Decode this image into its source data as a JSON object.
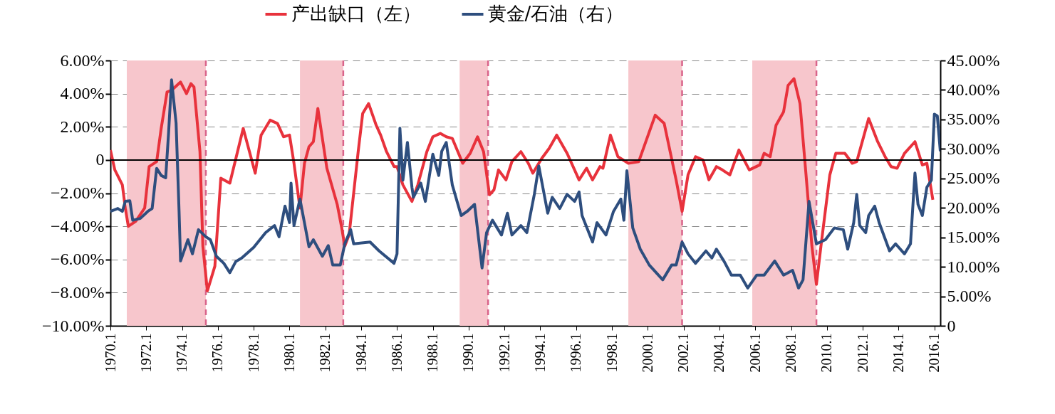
{
  "chart_data": {
    "type": "line",
    "legend": "top",
    "grid": "y",
    "line_style": "solid",
    "xlim": [
      "1970-01",
      "2016-05"
    ],
    "xticks": [
      {
        "value": "1970-01",
        "label": "1970.1"
      },
      {
        "value": "1972-01",
        "label": "1972.1"
      },
      {
        "value": "1974-01",
        "label": "1974.1"
      },
      {
        "value": "1976-01",
        "label": "1976.1"
      },
      {
        "value": "1978-01",
        "label": "1978.1"
      },
      {
        "value": "1980-01",
        "label": "1980.1"
      },
      {
        "value": "1982-01",
        "label": "1982.1"
      },
      {
        "value": "1984-01",
        "label": "1984.1"
      },
      {
        "value": "1986-01",
        "label": "1986.1"
      },
      {
        "value": "1988-01",
        "label": "1988.1"
      },
      {
        "value": "1990-01",
        "label": "1990.1"
      },
      {
        "value": "1992-01",
        "label": "1992.1"
      },
      {
        "value": "1994-01",
        "label": "1994.1"
      },
      {
        "value": "1996-01",
        "label": "1996.1"
      },
      {
        "value": "1998-01",
        "label": "1998.1"
      },
      {
        "value": "2000-01",
        "label": "2000.1"
      },
      {
        "value": "2002-01",
        "label": "2002.1"
      },
      {
        "value": "2004-01",
        "label": "2004.1"
      },
      {
        "value": "2006-01",
        "label": "2006.1"
      },
      {
        "value": "2008-01",
        "label": "2008.1"
      },
      {
        "value": "2010-01",
        "label": "2010.1"
      },
      {
        "value": "2012-01",
        "label": "2012.1"
      },
      {
        "value": "2014-01",
        "label": "2014.1"
      },
      {
        "value": "2016-01",
        "label": "2016.1"
      }
    ],
    "ylim": [
      -10,
      6
    ],
    "yticks": [
      {
        "value": 6,
        "label": "6.00%"
      },
      {
        "value": 4,
        "label": "4.00%"
      },
      {
        "value": 2,
        "label": "2.00%"
      },
      0,
      {
        "value": -2,
        "label": "−2.00%"
      },
      {
        "value": -4,
        "label": "−4.00%"
      },
      {
        "value": -6,
        "label": "−6.00%"
      },
      {
        "value": -8,
        "label": "−8.00%"
      },
      {
        "value": -10,
        "label": "−10.00%"
      }
    ],
    "y2lim": [
      0,
      45
    ],
    "y2ticks": [
      {
        "value": 45,
        "label": "45.00%"
      },
      {
        "value": 40,
        "label": "40.00%"
      },
      {
        "value": 35,
        "label": "35.00%"
      },
      {
        "value": 30,
        "label": "30.00%"
      },
      {
        "value": 25,
        "label": "25.00%"
      },
      {
        "value": 20,
        "label": "20.00%"
      },
      {
        "value": 15,
        "label": "15.00%"
      },
      {
        "value": 10,
        "label": "10.00%"
      },
      {
        "value": 5,
        "label": "5.00%"
      },
      0
    ],
    "bands": [
      {
        "axis": "x",
        "from": "1970-12",
        "to": "1975-05",
        "color": "#f7c6cc"
      },
      {
        "axis": "x",
        "from": "1980-08",
        "to": "1983-01",
        "color": "#f7c6cc"
      },
      {
        "axis": "x",
        "from": "1989-07",
        "to": "1991-02",
        "color": "#f7c6cc"
      },
      {
        "axis": "x",
        "from": "1998-12",
        "to": "2001-12",
        "color": "#f7c6cc"
      },
      {
        "axis": "x",
        "from": "2005-11",
        "to": "2009-06",
        "color": "#f7c6cc"
      }
    ],
    "ref_lines": [
      {
        "axis": "x",
        "value": "1975-05",
        "color": "#d9648a",
        "line_style": "dashed"
      },
      {
        "axis": "x",
        "value": "1983-01",
        "color": "#d9648a",
        "line_style": "dashed"
      },
      {
        "axis": "x",
        "value": "1991-02",
        "color": "#d9648a",
        "line_style": "dashed"
      },
      {
        "axis": "x",
        "value": "2001-12",
        "color": "#d9648a",
        "line_style": "dashed"
      },
      {
        "axis": "x",
        "value": "2009-06",
        "color": "#d9648a",
        "line_style": "dashed"
      },
      {
        "axis": "y",
        "value": 0,
        "color": "#000000",
        "line_style": "solid"
      }
    ],
    "series": [
      {
        "name": "产出缺口（左）",
        "color": "#e8323c",
        "x": [
          "1970-01",
          "1970-04",
          "1970-09",
          "1970-11",
          "1971-01",
          "1971-06",
          "1971-12",
          "1972-03",
          "1972-08",
          "1972-11",
          "1973-03",
          "1973-06",
          "1973-12",
          "1974-04",
          "1974-07",
          "1974-09",
          "1975-01",
          "1975-03",
          "1975-06",
          "1975-11",
          "1976-03",
          "1976-09",
          "1977-06",
          "1978-02",
          "1978-06",
          "1978-12",
          "1979-05",
          "1979-09",
          "1980-01",
          "1980-04",
          "1980-08",
          "1980-11",
          "1981-02",
          "1981-05",
          "1981-08",
          "1982-02",
          "1982-09",
          "1982-12",
          "1983-02",
          "1983-05",
          "1983-11",
          "1984-02",
          "1984-06",
          "1984-11",
          "1985-02",
          "1985-06",
          "1985-11",
          "1986-01",
          "1986-05",
          "1986-11",
          "1987-03",
          "1987-09",
          "1988-01",
          "1988-06",
          "1988-10",
          "1989-02",
          "1989-09",
          "1990-02",
          "1990-07",
          "1990-11",
          "1991-03",
          "1991-06",
          "1991-09",
          "1992-02",
          "1992-06",
          "1992-12",
          "1993-05",
          "1993-08",
          "1994-02",
          "1994-07",
          "1994-12",
          "1995-07",
          "1996-03",
          "1996-08",
          "1996-12",
          "1997-05",
          "1997-07",
          "1997-12",
          "1998-05",
          "1998-12",
          "1999-07",
          "2000-06",
          "2000-12",
          "2001-08",
          "2001-12",
          "2002-04",
          "2002-09",
          "2003-02",
          "2003-06",
          "2003-11",
          "2004-03",
          "2004-08",
          "2005-02",
          "2005-09",
          "2006-04",
          "2006-07",
          "2006-11",
          "2007-03",
          "2007-08",
          "2007-11",
          "2008-03",
          "2008-07",
          "2008-11",
          "2009-03",
          "2009-06",
          "2009-09",
          "2010-03",
          "2010-07",
          "2011-01",
          "2011-06",
          "2011-09",
          "2012-05",
          "2012-11",
          "2013-04",
          "2013-08",
          "2013-12",
          "2014-05",
          "2014-12",
          "2015-05",
          "2015-08",
          "2015-12"
        ],
        "values": [
          0.6,
          -0.6,
          -1.5,
          -2.9,
          -4.0,
          -3.7,
          -2.9,
          -0.4,
          -0.1,
          1.9,
          4.1,
          4.2,
          4.7,
          4.0,
          4.6,
          4.4,
          0.5,
          -5.2,
          -7.9,
          -6.4,
          -1.1,
          -1.4,
          1.9,
          -0.8,
          1.5,
          2.4,
          2.2,
          1.4,
          1.5,
          -0.2,
          -2.9,
          -0.2,
          0.8,
          1.1,
          3.1,
          -0.5,
          -2.7,
          -4.1,
          -5.2,
          -4.5,
          0.5,
          2.8,
          3.4,
          2.1,
          1.5,
          0.5,
          -0.4,
          -0.4,
          -1.5,
          -2.5,
          -1.5,
          0.5,
          1.4,
          1.6,
          1.4,
          1.3,
          -0.2,
          0.4,
          1.4,
          0.5,
          -2.1,
          -1.8,
          -0.6,
          -1.2,
          -0.1,
          0.5,
          -0.2,
          -0.8,
          0.1,
          0.7,
          1.5,
          0.4,
          -1.2,
          -0.5,
          -1.2,
          -0.4,
          -0.5,
          1.5,
          0.2,
          -0.2,
          -0.1,
          2.7,
          2.2,
          -1.2,
          -3.1,
          -0.9,
          0.2,
          0,
          -1.2,
          -0.4,
          -0.6,
          -0.9,
          0.6,
          -0.6,
          -0.3,
          0.4,
          0.2,
          2.1,
          2.9,
          4.5,
          4.9,
          3.4,
          -0.9,
          -5.2,
          -7.5,
          -5.2,
          -0.9,
          0.4,
          0.4,
          -0.2,
          -0.1,
          2.5,
          1.1,
          0.2,
          -0.4,
          -0.5,
          0.4,
          1.1,
          -0.3,
          -0.2,
          -2.4
        ]
      },
      {
        "name": "黄金/石油（右）",
        "color": "#2e4e7e",
        "axis": "y2",
        "x": [
          "1970-01",
          "1970-06",
          "1970-09",
          "1970-11",
          "1971-02",
          "1971-04",
          "1971-09",
          "1972-02",
          "1972-05",
          "1972-08",
          "1972-11",
          "1973-02",
          "1973-04",
          "1973-06",
          "1973-09",
          "1973-11",
          "1973-12",
          "1974-05",
          "1974-08",
          "1974-12",
          "1975-05",
          "1975-08",
          "1975-12",
          "1976-05",
          "1976-09",
          "1977-01",
          "1977-05",
          "1978-01",
          "1978-09",
          "1979-03",
          "1979-06",
          "1979-10",
          "1980-01",
          "1980-02",
          "1980-04",
          "1980-08",
          "1981-02",
          "1981-05",
          "1981-11",
          "1982-03",
          "1982-06",
          "1982-11",
          "1983-02",
          "1983-06",
          "1983-08",
          "1984-07",
          "1985-01",
          "1985-11",
          "1986-01",
          "1986-03",
          "1986-05",
          "1986-08",
          "1986-11",
          "1986-12",
          "1987-05",
          "1987-08",
          "1988-01",
          "1988-05",
          "1988-07",
          "1988-10",
          "1989-02",
          "1989-08",
          "1989-12",
          "1990-05",
          "1990-10",
          "1991-01",
          "1991-05",
          "1991-11",
          "1992-03",
          "1992-06",
          "1992-12",
          "1993-04",
          "1993-09",
          "1993-12",
          "1994-06",
          "1994-09",
          "1995-02",
          "1995-07",
          "1995-12",
          "1996-03",
          "1996-05",
          "1996-12",
          "1997-03",
          "1997-09",
          "1998-02",
          "1998-07",
          "1998-09",
          "1998-11",
          "1999-03",
          "1999-08",
          "2000-02",
          "2000-11",
          "2001-05",
          "2001-08",
          "2001-12",
          "2002-04",
          "2002-09",
          "2003-04",
          "2003-08",
          "2003-11",
          "2004-04",
          "2004-09",
          "2005-03",
          "2005-08",
          "2006-02",
          "2006-07",
          "2007-02",
          "2007-08",
          "2008-02",
          "2008-06",
          "2008-09",
          "2009-01",
          "2009-06",
          "2009-12",
          "2010-06",
          "2010-12",
          "2011-03",
          "2011-07",
          "2011-09",
          "2011-11",
          "2012-03",
          "2012-05",
          "2012-09",
          "2012-12",
          "2013-07",
          "2013-11",
          "2014-05",
          "2014-09",
          "2014-12",
          "2015-02",
          "2015-05",
          "2015-08",
          "2015-11",
          "2016-01",
          "2016-03",
          "2016-05"
        ],
        "values": [
          19.4,
          19.9,
          19.4,
          21.1,
          21.2,
          17.9,
          18.2,
          19.4,
          19.9,
          26.7,
          25.5,
          25.1,
          32.7,
          41.7,
          34.4,
          19.4,
          11.0,
          14.6,
          12.2,
          16.3,
          15.1,
          14.6,
          11.8,
          10.6,
          9.0,
          10.9,
          11.5,
          13.3,
          15.8,
          17.0,
          15.1,
          20.3,
          17.5,
          24.2,
          17.0,
          21.5,
          13.4,
          14.6,
          11.8,
          13.6,
          10.3,
          10.3,
          13.9,
          16.3,
          13.9,
          14.2,
          12.7,
          10.6,
          12.2,
          33.5,
          24.7,
          31.1,
          23.5,
          21.8,
          24.2,
          21.1,
          29.1,
          25.5,
          29.6,
          31.1,
          23.9,
          18.7,
          19.4,
          20.6,
          9.8,
          15.8,
          17.9,
          15.4,
          19.1,
          15.4,
          17.0,
          15.8,
          22.3,
          27.1,
          19.1,
          21.8,
          19.9,
          22.3,
          21.1,
          22.7,
          18.7,
          14.2,
          17.5,
          15.4,
          19.4,
          21.5,
          17.9,
          26.3,
          16.6,
          13.0,
          10.3,
          7.8,
          10.3,
          10.3,
          14.2,
          12.2,
          10.6,
          12.7,
          11.5,
          13.0,
          11.0,
          8.6,
          8.6,
          6.4,
          8.6,
          8.6,
          11.0,
          8.6,
          9.4,
          6.4,
          7.8,
          21.1,
          13.9,
          14.6,
          16.6,
          16.3,
          13.0,
          17.5,
          22.3,
          17.0,
          15.8,
          18.7,
          20.3,
          17.5,
          12.7,
          13.9,
          12.2,
          13.9,
          25.9,
          20.6,
          18.7,
          23.5,
          24.7,
          35.9,
          35.6,
          29.6
        ]
      }
    ]
  }
}
